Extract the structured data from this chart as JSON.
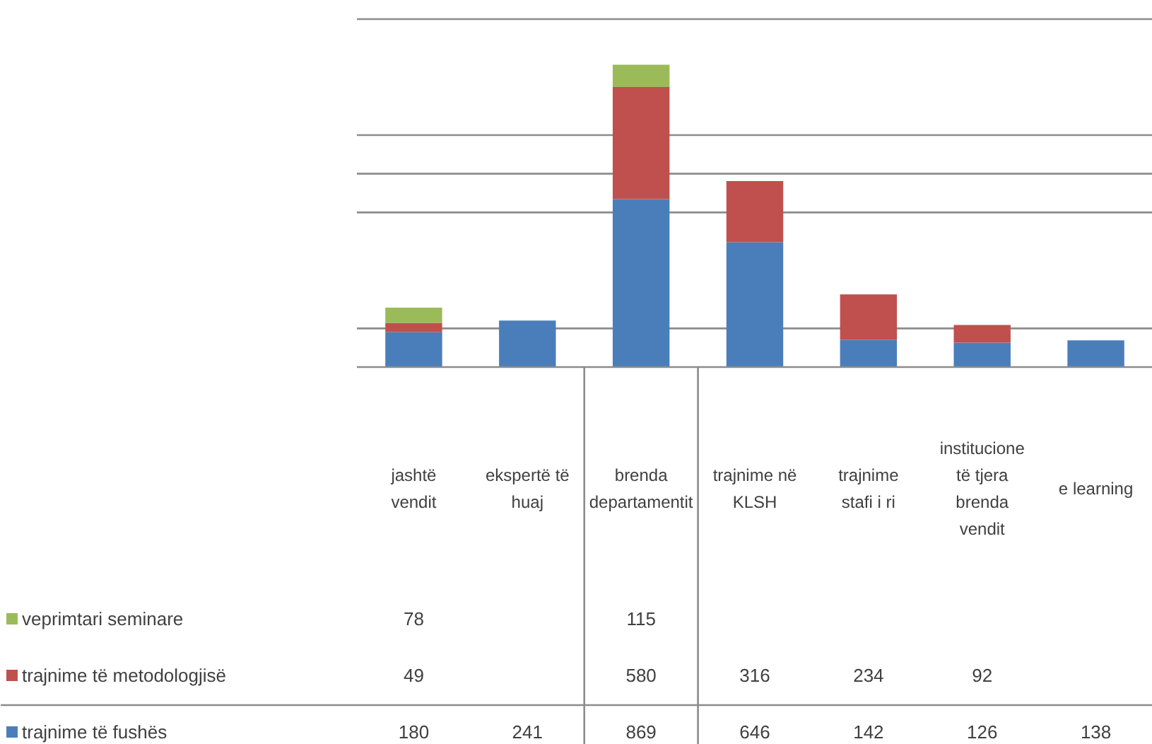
{
  "chart_data": {
    "type": "bar",
    "stacked": true,
    "categories": [
      "jashtë vendit",
      "ekspertë të huaj",
      "brenda departamentit",
      "trajnime në KLSH",
      "trajnime stafi i ri",
      "institucione të tjera brenda vendit",
      "e learning"
    ],
    "series": [
      {
        "name": "trajnime të fushës",
        "color": "#4a7ebb",
        "values": [
          180,
          241,
          869,
          646,
          142,
          126,
          138
        ]
      },
      {
        "name": "trajnime të metodologjisë",
        "color": "#c0504d",
        "values": [
          49,
          null,
          580,
          316,
          234,
          92,
          null
        ]
      },
      {
        "name": "veprimtari seminare",
        "color": "#9bbb59",
        "values": [
          78,
          null,
          115,
          null,
          null,
          null,
          null
        ]
      }
    ],
    "ylim": [
      0,
      1800
    ],
    "yticks": [
      {
        "value": 200,
        "label": null
      },
      {
        "value": 800,
        "label": null
      },
      {
        "value": 1000,
        "label": null
      },
      {
        "value": 1200,
        "label": null
      },
      {
        "value": 1800,
        "label": null
      }
    ],
    "grid": "y",
    "tick_labels": "x",
    "data_labels": true,
    "legend": "bottom left"
  }
}
